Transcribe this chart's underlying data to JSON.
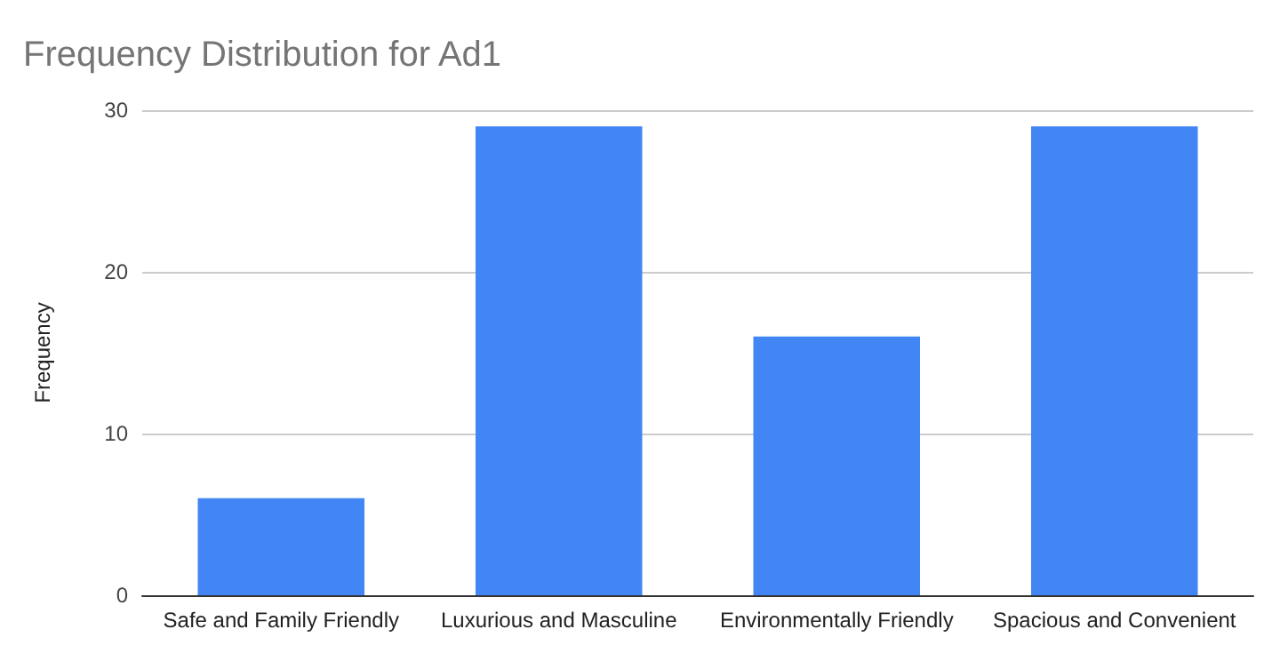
{
  "chart_data": {
    "type": "bar",
    "title": "Frequency Distribution for Ad1",
    "ylabel": "Frequency",
    "categories": [
      "Safe and Family Friendly",
      "Luxurious and Masculine",
      "Environmentally Friendly",
      "Spacious and Convenient"
    ],
    "values": [
      6,
      29,
      16,
      29
    ],
    "color": "#4285f4",
    "ylim": [
      0,
      30
    ],
    "yticks": [
      0,
      10,
      20,
      30
    ],
    "grid": "y"
  }
}
